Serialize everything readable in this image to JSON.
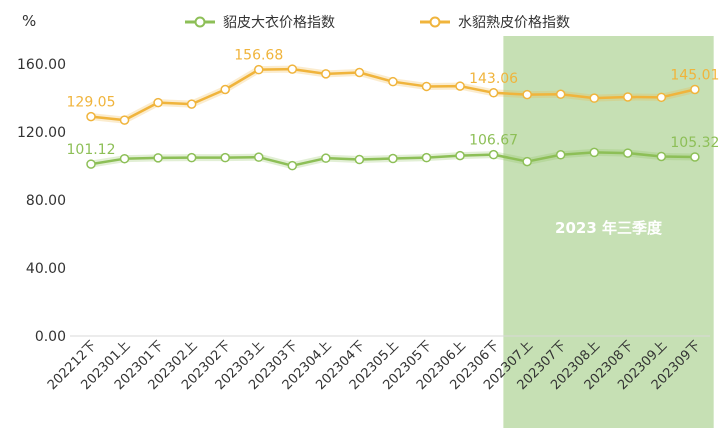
{
  "chart_data": {
    "type": "line",
    "unit_label": "%",
    "categories": [
      "202212下",
      "202301上",
      "202301下",
      "202302上",
      "202302下",
      "202303上",
      "202303下",
      "202304上",
      "202304下",
      "202305上",
      "202305下",
      "202306上",
      "202306下",
      "202307上",
      "202307下",
      "202308上",
      "202308下",
      "202309上",
      "202309下"
    ],
    "ylim": [
      0,
      160
    ],
    "yticks": [
      "0.00",
      "40.00",
      "80.00",
      "120.00",
      "160.00"
    ],
    "series": [
      {
        "name": "貂皮大衣价格指数",
        "color": "#8dbf57",
        "values": [
          101.12,
          104.3,
          104.8,
          104.9,
          104.9,
          105.2,
          100.2,
          104.6,
          103.8,
          104.4,
          104.9,
          106.1,
          106.67,
          102.6,
          106.6,
          108.0,
          107.6,
          105.6,
          105.32
        ]
      },
      {
        "name": "水貂熟皮价格指数",
        "color": "#f0b43c",
        "values": [
          129.05,
          127.0,
          137.3,
          136.4,
          145.0,
          156.68,
          157.0,
          154.2,
          155.0,
          149.6,
          146.8,
          147.0,
          143.06,
          142.0,
          142.2,
          139.9,
          140.6,
          140.4,
          145.01
        ]
      }
    ],
    "data_labels": [
      {
        "series": 0,
        "index": 0,
        "text": "101.12"
      },
      {
        "series": 0,
        "index": 12,
        "text": "106.67"
      },
      {
        "series": 0,
        "index": 18,
        "text": "105.32"
      },
      {
        "series": 1,
        "index": 0,
        "text": "129.05"
      },
      {
        "series": 1,
        "index": 5,
        "text": "156.68"
      },
      {
        "series": 1,
        "index": 12,
        "text": "143.06"
      },
      {
        "series": 1,
        "index": 18,
        "text": "145.01"
      }
    ],
    "highlight": {
      "from_category": "202307上",
      "to_category": "202309下",
      "label": "2023 年三季度",
      "color": "#c6e0b4"
    },
    "legend_position": "top",
    "grid": false
  }
}
